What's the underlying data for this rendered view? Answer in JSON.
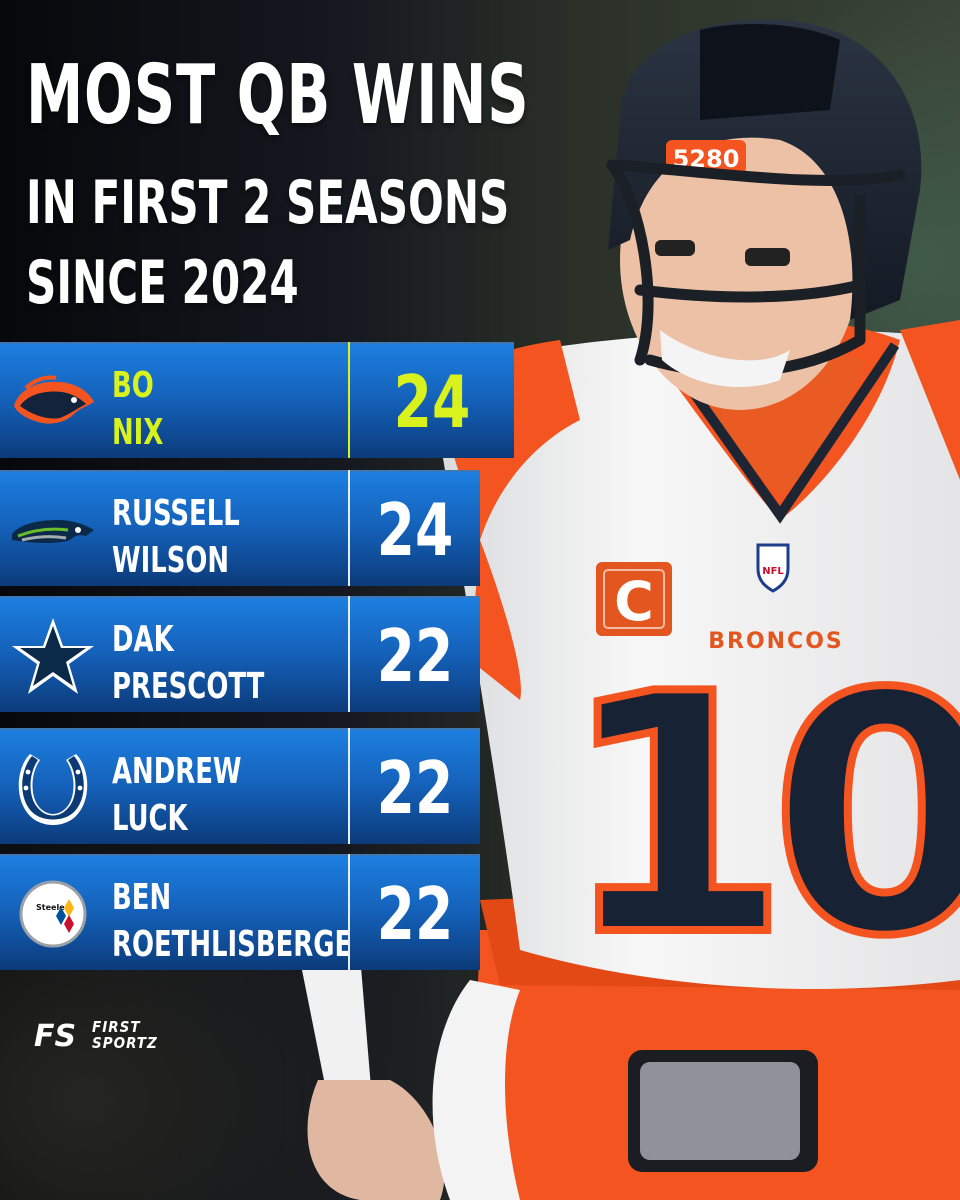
{
  "headline": {
    "line1": "MOST QB WINS",
    "line2": "IN FIRST 2 SEASONS",
    "line3": "SINCE 2024"
  },
  "colors": {
    "highlight": "#d9f21e",
    "panel_blue": "#1460b8",
    "broncos_orange": "#f4541f",
    "broncos_navy": "#14233c"
  },
  "rows": [
    {
      "team_icon": "broncos-logo-icon",
      "first": "BO",
      "last": "NIX",
      "wins": "24",
      "highlight": true
    },
    {
      "team_icon": "seahawks-logo-icon",
      "first": "RUSSELL",
      "last": "WILSON",
      "wins": "24"
    },
    {
      "team_icon": "cowboys-star-icon",
      "first": "DAK",
      "last": "PRESCOTT",
      "wins": "22"
    },
    {
      "team_icon": "colts-horseshoe-icon",
      "first": "ANDREW",
      "last": "LUCK",
      "wins": "22"
    },
    {
      "team_icon": "steelers-logo-icon",
      "first": "BEN",
      "last": "ROETHLISBERGER",
      "wins": "22",
      "steelers_text": "Steelers"
    }
  ],
  "player": {
    "helmet_text": "5280",
    "jersey_brand": "BRONCOS",
    "jersey_number": "10",
    "captain_patch": "C",
    "shield_text": "NFL"
  },
  "brand": {
    "mark": "FS",
    "line1": "FIRST",
    "line2": "SPORTZ"
  }
}
